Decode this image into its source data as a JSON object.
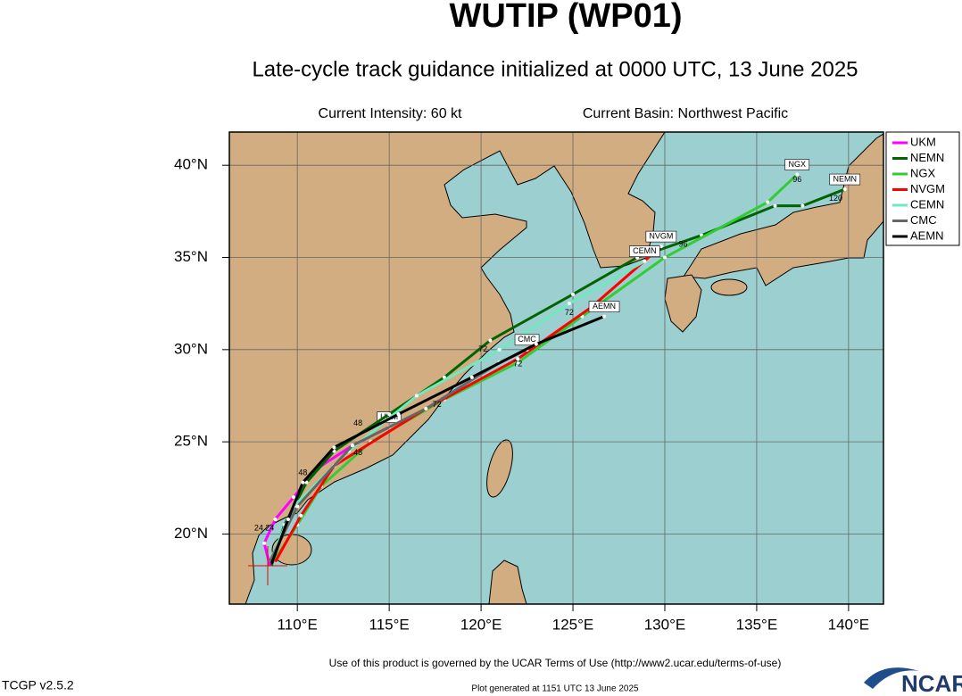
{
  "header": {
    "title": "WUTIP (WP01)",
    "subtitle": "Late-cycle track guidance initialized at 0000 UTC, 13 June 2025",
    "intensity": "Current Intensity: 60 kt",
    "basin": "Current Basin: Northwest Pacific"
  },
  "map": {
    "xlim": [
      106.3,
      141.9
    ],
    "ylim": [
      16.2,
      41.8
    ],
    "xticks": [
      {
        "value": 110,
        "label": "110°E"
      },
      {
        "value": 115,
        "label": "115°E"
      },
      {
        "value": 120,
        "label": "120°E"
      },
      {
        "value": 125,
        "label": "125°E"
      },
      {
        "value": 130,
        "label": "130°E"
      },
      {
        "value": 135,
        "label": "135°E"
      },
      {
        "value": 140,
        "label": "140°E"
      }
    ],
    "yticks": [
      {
        "value": 20,
        "label": "20°N"
      },
      {
        "value": 25,
        "label": "25°N"
      },
      {
        "value": 30,
        "label": "30°N"
      },
      {
        "value": 35,
        "label": "35°N"
      },
      {
        "value": 40,
        "label": "40°N"
      }
    ],
    "tracks": [
      {
        "name": "UKM",
        "color": "#ff00ff",
        "lon": [
          108.5,
          108.2,
          108.8,
          109.8,
          111.0,
          113.0,
          115.0
        ],
        "lat": [
          18.3,
          19.5,
          20.8,
          22.0,
          23.5,
          24.8,
          25.8
        ]
      },
      {
        "name": "NEMN",
        "color": "#006400",
        "lon": [
          108.6,
          109.3,
          110.5,
          112.0,
          115.0,
          118.0,
          120.5,
          125.0,
          128.5,
          132.0,
          136.0,
          137.5,
          139.8
        ],
        "lat": [
          18.3,
          20.5,
          22.8,
          24.5,
          26.5,
          28.5,
          30.5,
          33.0,
          35.0,
          36.2,
          37.8,
          37.8,
          38.7
        ]
      },
      {
        "name": "NGX",
        "color": "#32cd32",
        "lon": [
          108.7,
          110.0,
          111.3,
          114.0,
          118.0,
          122.0,
          125.5,
          130.0,
          135.6,
          137.2
        ],
        "lat": [
          18.5,
          20.5,
          22.6,
          25.0,
          27.3,
          29.3,
          31.8,
          35.0,
          38.0,
          39.5
        ]
      },
      {
        "name": "NVGM",
        "color": "#ff0000",
        "lon": [
          108.8,
          110.2,
          112.0,
          117.0,
          122.0,
          126.0,
          129.8
        ],
        "lat": [
          18.5,
          21.0,
          23.7,
          26.8,
          29.5,
          32.3,
          35.6
        ]
      },
      {
        "name": "CEMN",
        "color": "#70e8c0",
        "lon": [
          108.5,
          109.8,
          112.8,
          116.5,
          121.0,
          124.8,
          128.9
        ],
        "lat": [
          18.5,
          21.5,
          24.5,
          27.5,
          30.0,
          32.5,
          34.8
        ]
      },
      {
        "name": "CMC",
        "color": "#666666",
        "lon": [
          108.5,
          110.0,
          113.0,
          117.0,
          121.0,
          122.5
        ],
        "lat": [
          18.5,
          21.5,
          24.8,
          26.8,
          29.3,
          30.0
        ]
      },
      {
        "name": "AEMN",
        "color": "#000000",
        "lon": [
          108.6,
          109.5,
          110.3,
          112.0,
          115.5,
          119.5,
          123.0,
          126.7
        ],
        "lat": [
          18.4,
          20.8,
          22.8,
          24.7,
          26.5,
          28.5,
          30.3,
          31.8
        ]
      }
    ],
    "hour_labels": [
      {
        "lon": 137.2,
        "lat": 39.2,
        "text": "96"
      },
      {
        "lon": 139.3,
        "lat": 38.2,
        "text": "120"
      },
      {
        "lon": 131.0,
        "lat": 35.7,
        "text": "96"
      },
      {
        "lon": 124.8,
        "lat": 32.0,
        "text": "72"
      },
      {
        "lon": 120.1,
        "lat": 30.0,
        "text": "72"
      },
      {
        "lon": 122.0,
        "lat": 29.2,
        "text": "72"
      },
      {
        "lon": 117.6,
        "lat": 27.0,
        "text": "72"
      },
      {
        "lon": 113.3,
        "lat": 26.0,
        "text": "48"
      },
      {
        "lon": 113.3,
        "lat": 24.4,
        "text": "48"
      },
      {
        "lon": 110.3,
        "lat": 23.3,
        "text": "48"
      },
      {
        "lon": 107.9,
        "lat": 20.3,
        "text": "24"
      },
      {
        "lon": 108.5,
        "lat": 20.3,
        "text": "24"
      }
    ]
  },
  "footer": {
    "terms": "Use of this product is governed by the UCAR Terms of Use (http://www2.ucar.edu/terms-of-use)",
    "version": "TCGP v2.5.2",
    "generated": "Plot generated at 1151 UTC   13 June 2025",
    "logo": "NCAR"
  }
}
